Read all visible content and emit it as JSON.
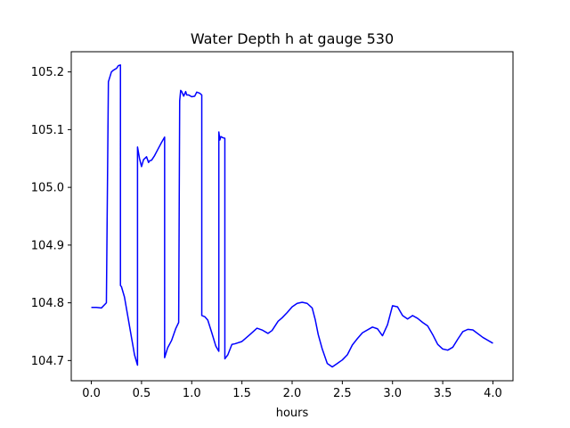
{
  "chart_data": {
    "type": "line",
    "title": "Water Depth h at gauge 530",
    "xlabel": "hours",
    "ylabel": "",
    "xlim": [
      -0.2,
      4.2
    ],
    "ylim": [
      104.665,
      105.235
    ],
    "xticks": [
      0.0,
      0.5,
      1.0,
      1.5,
      2.0,
      2.5,
      3.0,
      3.5,
      4.0
    ],
    "xtick_labels": [
      "0.0",
      "0.5",
      "1.0",
      "1.5",
      "2.0",
      "2.5",
      "3.0",
      "3.5",
      "4.0"
    ],
    "yticks": [
      104.7,
      104.8,
      104.9,
      105.0,
      105.1,
      105.2
    ],
    "ytick_labels": [
      "104.7",
      "104.8",
      "104.9",
      "105.0",
      "105.1",
      "105.2"
    ],
    "grid": false,
    "series": [
      {
        "color": "#0000ff",
        "x": [
          0.0,
          0.05,
          0.1,
          0.15,
          0.17,
          0.2,
          0.22,
          0.25,
          0.27,
          0.29,
          0.29,
          0.3,
          0.33,
          0.36,
          0.4,
          0.43,
          0.46,
          0.46,
          0.48,
          0.5,
          0.52,
          0.55,
          0.57,
          0.58,
          0.6,
          0.63,
          0.66,
          0.7,
          0.73,
          0.73,
          0.76,
          0.8,
          0.84,
          0.87,
          0.88,
          0.89,
          0.9,
          0.92,
          0.94,
          0.95,
          0.97,
          1.0,
          1.03,
          1.05,
          1.08,
          1.1,
          1.1,
          1.13,
          1.16,
          1.2,
          1.24,
          1.27,
          1.27,
          1.28,
          1.29,
          1.31,
          1.33,
          1.33,
          1.36,
          1.4,
          1.43,
          1.5,
          1.58,
          1.65,
          1.7,
          1.76,
          1.8,
          1.86,
          1.9,
          1.95,
          2.0,
          2.05,
          2.1,
          2.15,
          2.2,
          2.23,
          2.26,
          2.3,
          2.35,
          2.4,
          2.45,
          2.5,
          2.55,
          2.6,
          2.65,
          2.7,
          2.8,
          2.85,
          2.9,
          2.95,
          3.0,
          3.05,
          3.1,
          3.15,
          3.2,
          3.25,
          3.3,
          3.35,
          3.4,
          3.45,
          3.5,
          3.55,
          3.6,
          3.65,
          3.7,
          3.75,
          3.8,
          3.9,
          4.0
        ],
        "y": [
          104.792,
          104.792,
          104.791,
          104.8,
          105.183,
          105.2,
          105.203,
          105.206,
          105.211,
          105.212,
          104.83,
          104.828,
          104.81,
          104.78,
          104.74,
          104.71,
          104.692,
          105.07,
          105.05,
          105.036,
          105.048,
          105.053,
          105.043,
          105.046,
          105.047,
          105.055,
          105.065,
          105.078,
          105.087,
          104.705,
          104.722,
          104.735,
          104.755,
          104.766,
          105.15,
          105.168,
          105.166,
          105.158,
          105.166,
          105.16,
          105.16,
          105.157,
          105.158,
          105.165,
          105.163,
          105.16,
          104.778,
          104.776,
          104.77,
          104.748,
          104.725,
          104.716,
          105.096,
          105.082,
          105.088,
          105.086,
          105.085,
          104.703,
          104.71,
          104.728,
          104.729,
          104.733,
          104.745,
          104.756,
          104.753,
          104.747,
          104.752,
          104.768,
          104.774,
          104.783,
          104.793,
          104.799,
          104.801,
          104.799,
          104.791,
          104.771,
          104.745,
          104.72,
          104.695,
          104.689,
          104.695,
          104.701,
          104.71,
          104.727,
          104.738,
          104.748,
          104.758,
          104.755,
          104.743,
          104.762,
          104.795,
          104.793,
          104.778,
          104.772,
          104.778,
          104.773,
          104.766,
          104.76,
          104.745,
          104.728,
          104.72,
          104.718,
          104.723,
          104.737,
          104.75,
          104.754,
          104.753,
          104.74,
          104.73
        ]
      }
    ]
  }
}
